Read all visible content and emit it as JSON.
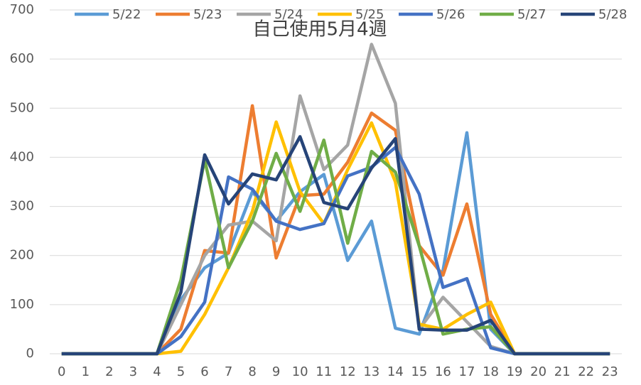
{
  "chart_data": {
    "type": "line",
    "title": "自己使用5月4週",
    "categories": [
      "0",
      "1",
      "2",
      "3",
      "4",
      "5",
      "6",
      "7",
      "8",
      "9",
      "10",
      "11",
      "12",
      "13",
      "14",
      "15",
      "16",
      "17",
      "18",
      "19",
      "20",
      "21",
      "22",
      "23"
    ],
    "series": [
      {
        "name": "5/22",
        "color": "#5b9bd5",
        "values": [
          0,
          0,
          0,
          0,
          0,
          110,
          175,
          205,
          330,
          270,
          330,
          365,
          190,
          270,
          52,
          40,
          170,
          450,
          50,
          0,
          0,
          0,
          0,
          0
        ]
      },
      {
        "name": "5/23",
        "color": "#ed7d31",
        "values": [
          0,
          0,
          0,
          0,
          0,
          50,
          210,
          205,
          505,
          195,
          322,
          325,
          390,
          490,
          455,
          220,
          160,
          305,
          80,
          0,
          0,
          0,
          0,
          0
        ]
      },
      {
        "name": "5/24",
        "color": "#a5a5a5",
        "values": [
          0,
          0,
          0,
          0,
          0,
          100,
          200,
          262,
          270,
          230,
          525,
          375,
          425,
          630,
          510,
          50,
          115,
          65,
          15,
          0,
          0,
          0,
          0,
          0
        ]
      },
      {
        "name": "5/25",
        "color": "#ffc000",
        "values": [
          0,
          0,
          0,
          0,
          0,
          5,
          80,
          175,
          290,
          472,
          330,
          265,
          375,
          470,
          350,
          60,
          50,
          80,
          105,
          0,
          0,
          0,
          0,
          0
        ]
      },
      {
        "name": "5/26",
        "color": "#4472c4",
        "values": [
          0,
          0,
          0,
          0,
          0,
          35,
          105,
          360,
          335,
          270,
          253,
          265,
          362,
          380,
          420,
          325,
          135,
          153,
          12,
          0,
          0,
          0,
          0,
          0
        ]
      },
      {
        "name": "5/27",
        "color": "#70ad47",
        "values": [
          0,
          0,
          0,
          0,
          0,
          150,
          395,
          175,
          270,
          408,
          290,
          435,
          225,
          412,
          370,
          220,
          40,
          50,
          55,
          0,
          0,
          0,
          0,
          0
        ]
      },
      {
        "name": "5/28",
        "color": "#264478",
        "values": [
          0,
          0,
          0,
          0,
          0,
          125,
          405,
          305,
          366,
          354,
          442,
          308,
          295,
          378,
          438,
          50,
          48,
          48,
          68,
          0,
          0,
          0,
          0,
          0
        ]
      }
    ],
    "ylim": [
      0,
      700
    ],
    "yticks": [
      0,
      100,
      200,
      300,
      400,
      500,
      600,
      700
    ],
    "grid": true
  }
}
